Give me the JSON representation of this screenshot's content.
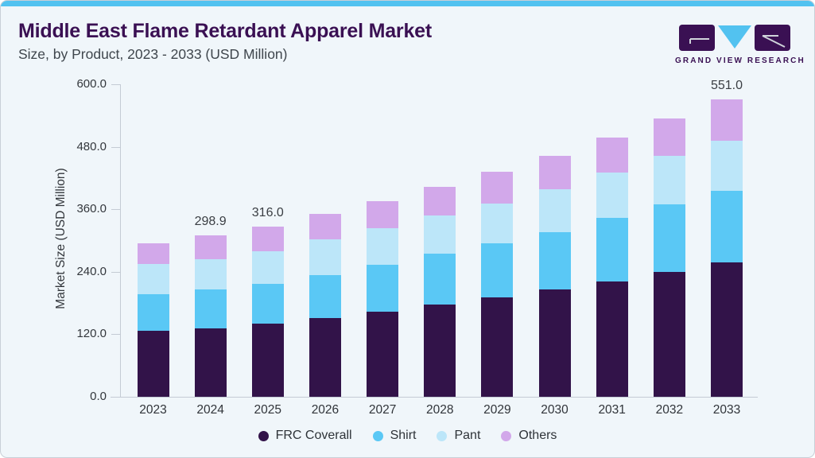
{
  "header": {
    "title": "Middle East Flame Retardant Apparel Market",
    "subtitle": "Size, by Product, 2023 - 2033 (USD Million)",
    "logo_text": "GRAND VIEW RESEARCH"
  },
  "colors": {
    "accent_strip": "#52C2F0",
    "card_background": "#F0F6FA",
    "card_border": "#C8CFD7",
    "title_text": "#3A1053",
    "subtitle_text": "#3F464D",
    "axis_line": "#C4CBD4",
    "axis_text": "#33373C",
    "bar_label_text": "#3A3E43",
    "logo_purple": "#3A1053",
    "logo_blue": "#52C2F0"
  },
  "chart_data": {
    "type": "bar",
    "stacked": true,
    "ylabel": "Market Size (USD Million)",
    "xlabel": "",
    "ylim": [
      0,
      600
    ],
    "yticks": [
      0,
      120,
      240,
      360,
      480,
      600
    ],
    "ytick_labels": [
      "0.0",
      "120.0",
      "240.0",
      "360.0",
      "480.0",
      "600.0"
    ],
    "grid": false,
    "legend_position": "bottom",
    "categories": [
      "2023",
      "2024",
      "2025",
      "2026",
      "2027",
      "2028",
      "2029",
      "2030",
      "2031",
      "2032",
      "2033"
    ],
    "series": [
      {
        "name": "FRC Coverall",
        "color": "#321349",
        "values": [
          121.7,
          126.8,
          136.0,
          145.9,
          157.7,
          170.4,
          183.6,
          198.4,
          213.7,
          230.8,
          248.8
        ]
      },
      {
        "name": "Shirt",
        "color": "#5AC8F5",
        "values": [
          68.0,
          72.2,
          73.7,
          80.0,
          86.4,
          94.9,
          100.3,
          107.1,
          117.9,
          125.3,
          133.5
        ]
      },
      {
        "name": "Pant",
        "color": "#BCE6F9",
        "values": [
          55.9,
          56.4,
          60.0,
          65.3,
          67.8,
          71.2,
          74.2,
          78.6,
          83.5,
          89.9,
          93.0
        ]
      },
      {
        "name": "Others",
        "color": "#D2A8EA",
        "values": [
          38.9,
          43.5,
          46.3,
          47.8,
          51.1,
          52.0,
          59.4,
          62.9,
          64.8,
          69.3,
          75.7
        ]
      }
    ],
    "totals": [
      284.5,
      298.9,
      316.0,
      339.0,
      363.0,
      388.5,
      417.5,
      447.0,
      479.9,
      515.3,
      551.0
    ],
    "total_labels": [
      "",
      "298.9",
      "316.0",
      "",
      "",
      "",
      "",
      "",
      "",
      "",
      "551.0"
    ]
  }
}
